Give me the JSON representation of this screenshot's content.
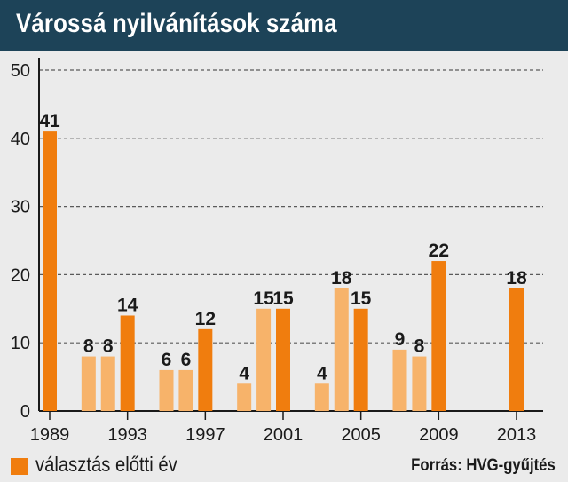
{
  "chart_data": {
    "type": "bar",
    "title": "Várossá nyilvánítások száma",
    "x": [
      1989,
      1991,
      1992,
      1993,
      1995,
      1996,
      1997,
      1999,
      2000,
      2001,
      2003,
      2004,
      2005,
      2007,
      2008,
      2009,
      2013
    ],
    "values": [
      41,
      8,
      8,
      14,
      6,
      6,
      12,
      4,
      15,
      15,
      4,
      18,
      15,
      9,
      8,
      22,
      18
    ],
    "highlight": [
      true,
      false,
      false,
      true,
      false,
      false,
      true,
      false,
      false,
      true,
      false,
      false,
      true,
      false,
      false,
      true,
      true
    ],
    "x_ticks": [
      1989,
      1993,
      1997,
      2001,
      2005,
      2009,
      2013
    ],
    "y_ticks": [
      0,
      10,
      20,
      30,
      40,
      50
    ],
    "ylim": [
      0,
      50
    ],
    "xlim": [
      1988.5,
      2014.5
    ],
    "grid": "horizontal dashed",
    "colors": {
      "highlight": "#f07d0e",
      "normal": "#f7b36a",
      "title_bg": "#1d4358",
      "background": "#ebebeb"
    },
    "legend": {
      "label": "választás előtti év",
      "placement": "bottom-left"
    },
    "source": "Forrás: HVG-gyűjtés"
  }
}
